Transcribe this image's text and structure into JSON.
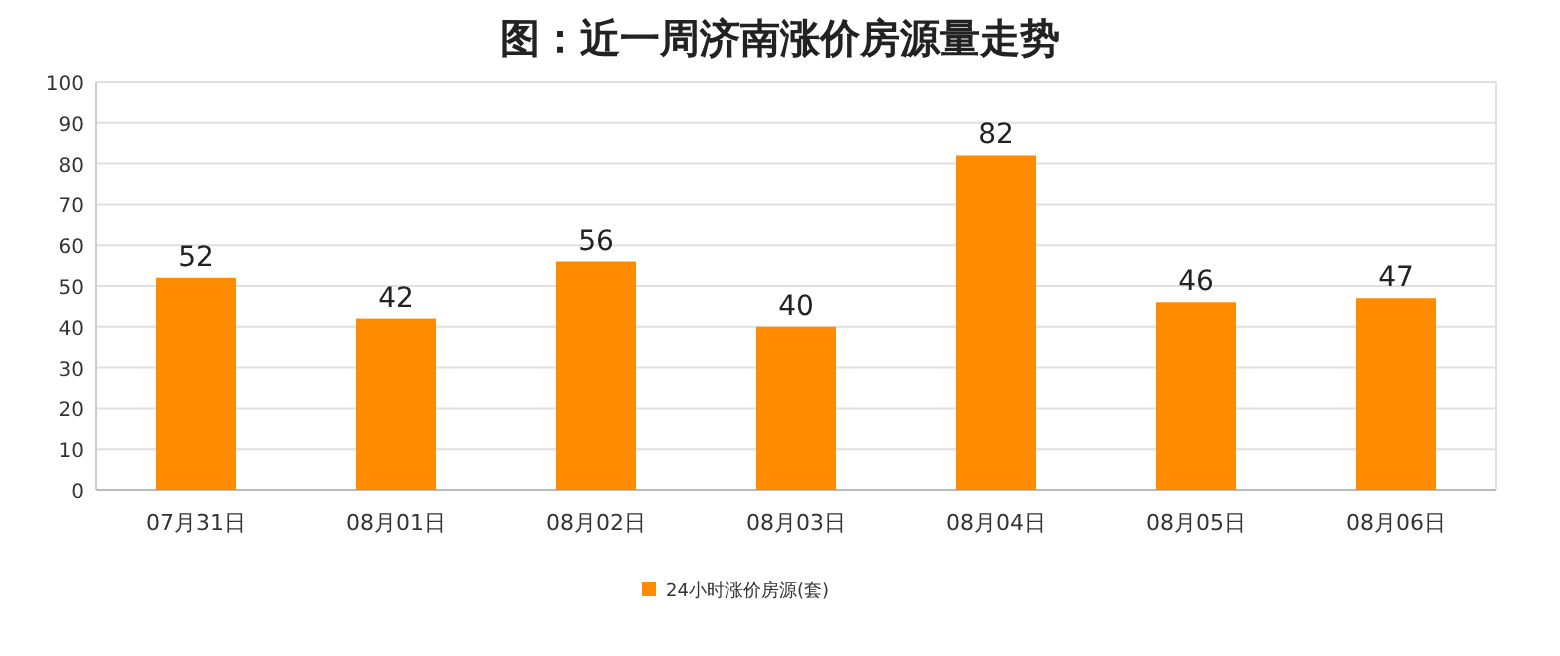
{
  "chart_data": {
    "type": "bar",
    "title": "图：近一周济南涨价房源量走势",
    "categories": [
      "07月31日",
      "08月01日",
      "08月02日",
      "08月03日",
      "08月04日",
      "08月05日",
      "08月06日"
    ],
    "series": [
      {
        "name": "24小时涨价房源(套)",
        "color": "#ff8c00",
        "values": [
          52,
          42,
          56,
          40,
          82,
          46,
          47
        ]
      }
    ],
    "ylim": [
      0,
      100
    ],
    "yticks": [
      0,
      10,
      20,
      30,
      40,
      50,
      60,
      70,
      80,
      90,
      100
    ],
    "grid": "y",
    "legend": "bottom",
    "data_labels": true
  }
}
